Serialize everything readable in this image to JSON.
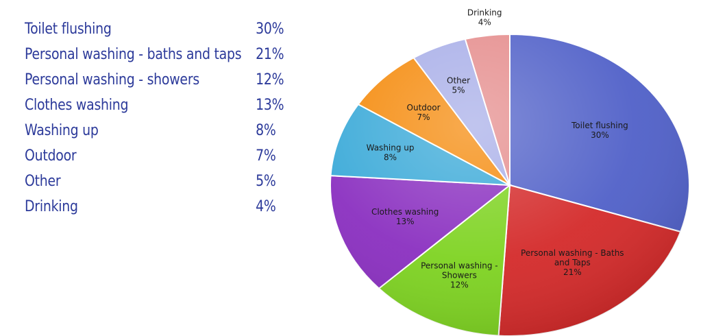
{
  "table": {
    "rows": [
      {
        "label": "Toilet flushing",
        "value": "30%"
      },
      {
        "label": "Personal washing - baths and taps",
        "value": "21%"
      },
      {
        "label": "Personal washing - showers",
        "value": "12%"
      },
      {
        "label": "Clothes washing",
        "value": "13%"
      },
      {
        "label": "Washing up",
        "value": "8%"
      },
      {
        "label": "Outdoor",
        "value": "7%"
      },
      {
        "label": "Other",
        "value": "5%"
      },
      {
        "label": "Drinking",
        "value": "4%"
      }
    ]
  },
  "chart_data": {
    "type": "pie",
    "title": "",
    "slices": [
      {
        "label_lines": [
          "Toilet flushing",
          "30%"
        ],
        "value": 30,
        "color": "#5060c8"
      },
      {
        "label_lines": [
          "Personal washing - Baths",
          "and Taps",
          "21%"
        ],
        "value": 21,
        "color": "#d42a2a"
      },
      {
        "label_lines": [
          "Personal washing -",
          "Showers",
          "12%"
        ],
        "value": 12,
        "color": "#7ed321"
      },
      {
        "label_lines": [
          "Clothes washing",
          "13%"
        ],
        "value": 13,
        "color": "#8a2fc0"
      },
      {
        "label_lines": [
          "Washing up",
          "8%"
        ],
        "value": 8,
        "color": "#39a9d8"
      },
      {
        "label_lines": [
          "Outdoor",
          "7%"
        ],
        "value": 7,
        "color": "#f58a0b"
      },
      {
        "label_lines": [
          "Other",
          "5%"
        ],
        "value": 5,
        "color": "#a8aee8"
      },
      {
        "label_lines": [
          "Drinking",
          "4%"
        ],
        "value": 4,
        "color": "#e58c8c"
      }
    ],
    "colors": {
      "text": "#2c3a9a"
    }
  }
}
